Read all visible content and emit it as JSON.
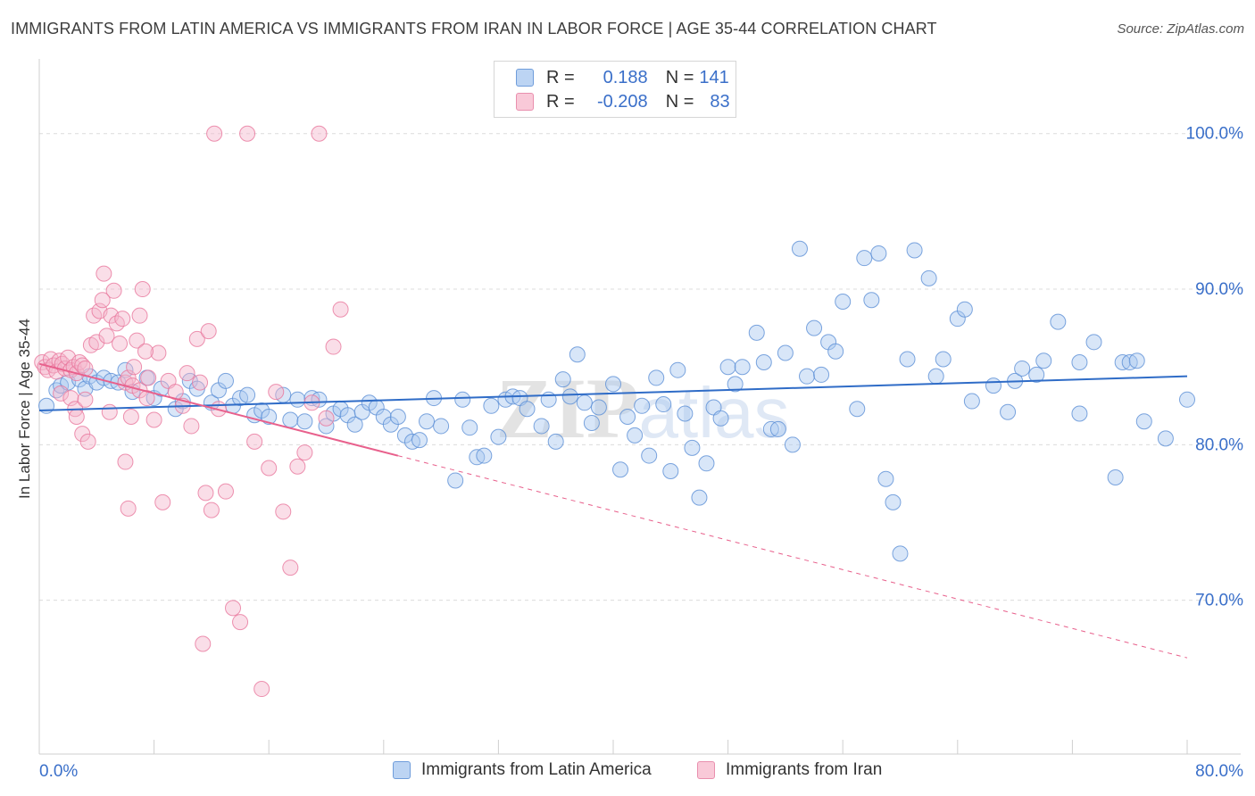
{
  "title": "IMMIGRANTS FROM LATIN AMERICA VS IMMIGRANTS FROM IRAN IN LABOR FORCE | AGE 35-44 CORRELATION CHART",
  "source": "Source: ZipAtlas.com",
  "watermark": "ZIPatlas",
  "legend": {
    "r_label": "R =",
    "n_label": "N =",
    "rows": [
      {
        "r": "0.188",
        "n": "141",
        "color": "#a8c8f0"
      },
      {
        "r": "-0.208",
        "n": "83",
        "color": "#f5b6cb"
      }
    ]
  },
  "chart_data": {
    "type": "scatter",
    "title": "IMMIGRANTS FROM LATIN AMERICA VS IMMIGRANTS FROM IRAN IN LABOR FORCE | AGE 35-44 CORRELATION CHART",
    "xlabel": "",
    "ylabel": "In Labor Force | Age 35-44",
    "xlim": [
      0,
      80
    ],
    "ylim": [
      60,
      104
    ],
    "x_tick_labels": [
      "0.0%",
      "80.0%"
    ],
    "y_ticks": [
      70,
      80,
      90,
      100
    ],
    "y_tick_labels": [
      "70.0%",
      "80.0%",
      "90.0%",
      "100.0%"
    ],
    "grid": true,
    "legend_position": "top-center",
    "series": [
      {
        "name": "Immigrants from Latin America",
        "color": "#5b8fd6",
        "fill": "#a8c8f0",
        "trend": {
          "x": [
            0,
            80
          ],
          "y": [
            82.2,
            84.4
          ],
          "style": "solid",
          "color": "#2f6cc7"
        },
        "points": [
          [
            0.5,
            82.5
          ],
          [
            1.2,
            83.5
          ],
          [
            1.5,
            83.8
          ],
          [
            2.0,
            84.0
          ],
          [
            2.8,
            84.2
          ],
          [
            3.2,
            83.6
          ],
          [
            3.5,
            84.4
          ],
          [
            4.0,
            84.0
          ],
          [
            4.5,
            84.3
          ],
          [
            5.0,
            84.1
          ],
          [
            5.5,
            84.0
          ],
          [
            6.0,
            84.8
          ],
          [
            6.5,
            83.4
          ],
          [
            7.5,
            84.3
          ],
          [
            8.0,
            83.0
          ],
          [
            8.5,
            83.6
          ],
          [
            9.5,
            82.3
          ],
          [
            10.0,
            82.8
          ],
          [
            10.5,
            84.1
          ],
          [
            11.0,
            83.6
          ],
          [
            12.0,
            82.7
          ],
          [
            12.5,
            83.5
          ],
          [
            13.0,
            84.1
          ],
          [
            13.5,
            82.5
          ],
          [
            14.0,
            83.0
          ],
          [
            14.5,
            83.2
          ],
          [
            15.0,
            81.9
          ],
          [
            15.5,
            82.2
          ],
          [
            16.0,
            81.8
          ],
          [
            17.0,
            83.2
          ],
          [
            17.5,
            81.6
          ],
          [
            18.0,
            82.9
          ],
          [
            18.5,
            81.5
          ],
          [
            19.0,
            83.0
          ],
          [
            19.5,
            82.9
          ],
          [
            20.0,
            81.2
          ],
          [
            20.5,
            82.0
          ],
          [
            21.0,
            82.3
          ],
          [
            21.5,
            81.9
          ],
          [
            22.0,
            81.3
          ],
          [
            22.5,
            82.1
          ],
          [
            23.0,
            82.7
          ],
          [
            23.5,
            82.4
          ],
          [
            24.0,
            81.8
          ],
          [
            24.5,
            81.3
          ],
          [
            25.0,
            81.8
          ],
          [
            25.5,
            80.6
          ],
          [
            26.0,
            80.2
          ],
          [
            26.5,
            80.3
          ],
          [
            27.0,
            81.5
          ],
          [
            27.5,
            83.0
          ],
          [
            28.0,
            81.2
          ],
          [
            29.0,
            77.7
          ],
          [
            29.5,
            82.9
          ],
          [
            30.0,
            81.1
          ],
          [
            30.5,
            79.2
          ],
          [
            31.0,
            79.3
          ],
          [
            31.5,
            82.5
          ],
          [
            32.0,
            80.5
          ],
          [
            32.5,
            82.9
          ],
          [
            33.0,
            83.1
          ],
          [
            33.5,
            83.0
          ],
          [
            34.0,
            82.3
          ],
          [
            35.0,
            81.2
          ],
          [
            35.5,
            82.9
          ],
          [
            36.0,
            80.2
          ],
          [
            36.5,
            84.2
          ],
          [
            37.0,
            83.1
          ],
          [
            37.5,
            85.8
          ],
          [
            38.0,
            82.7
          ],
          [
            38.5,
            81.4
          ],
          [
            39.0,
            82.4
          ],
          [
            40.0,
            83.9
          ],
          [
            40.5,
            78.4
          ],
          [
            41.0,
            81.8
          ],
          [
            41.5,
            80.6
          ],
          [
            42.0,
            82.5
          ],
          [
            42.5,
            79.3
          ],
          [
            43.0,
            84.3
          ],
          [
            43.5,
            82.6
          ],
          [
            44.0,
            78.3
          ],
          [
            44.5,
            84.8
          ],
          [
            45.0,
            82.0
          ],
          [
            45.5,
            79.8
          ],
          [
            46.0,
            76.6
          ],
          [
            46.5,
            78.8
          ],
          [
            47.0,
            82.4
          ],
          [
            47.5,
            81.7
          ],
          [
            48.0,
            85.0
          ],
          [
            48.5,
            83.9
          ],
          [
            49.0,
            85.0
          ],
          [
            50.0,
            87.2
          ],
          [
            50.5,
            85.3
          ],
          [
            51.0,
            81.0
          ],
          [
            51.5,
            81.0
          ],
          [
            52.0,
            85.9
          ],
          [
            52.5,
            80.0
          ],
          [
            53.0,
            92.6
          ],
          [
            53.5,
            84.4
          ],
          [
            54.0,
            87.5
          ],
          [
            54.5,
            84.5
          ],
          [
            55.0,
            86.6
          ],
          [
            55.5,
            86.0
          ],
          [
            56.0,
            89.2
          ],
          [
            57.0,
            82.3
          ],
          [
            57.5,
            92.0
          ],
          [
            58.0,
            89.3
          ],
          [
            58.5,
            92.3
          ],
          [
            59.0,
            77.8
          ],
          [
            59.5,
            76.3
          ],
          [
            60.0,
            73.0
          ],
          [
            60.5,
            85.5
          ],
          [
            61.0,
            92.5
          ],
          [
            62.0,
            90.7
          ],
          [
            62.5,
            84.4
          ],
          [
            63.0,
            85.5
          ],
          [
            64.0,
            88.1
          ],
          [
            64.5,
            88.7
          ],
          [
            65.0,
            82.8
          ],
          [
            66.5,
            83.8
          ],
          [
            67.5,
            82.1
          ],
          [
            68.0,
            84.1
          ],
          [
            68.5,
            84.9
          ],
          [
            69.5,
            84.5
          ],
          [
            70.0,
            85.4
          ],
          [
            71.0,
            87.9
          ],
          [
            72.5,
            82.0
          ],
          [
            72.5,
            85.3
          ],
          [
            73.5,
            86.6
          ],
          [
            75.0,
            77.9
          ],
          [
            75.5,
            85.3
          ],
          [
            76.0,
            85.3
          ],
          [
            76.5,
            85.4
          ],
          [
            77.0,
            81.5
          ],
          [
            78.5,
            80.4
          ],
          [
            80.0,
            82.9
          ]
        ]
      },
      {
        "name": "Immigrants from Iran",
        "color": "#e8779c",
        "fill": "#f5b6cb",
        "trend": {
          "x": [
            0,
            80
          ],
          "y": [
            85.2,
            66.3
          ],
          "style": "solid-then-dashed",
          "solid_until_x": 25,
          "color": "#e8608c"
        },
        "points": [
          [
            0.2,
            85.3
          ],
          [
            0.4,
            85.0
          ],
          [
            0.6,
            84.8
          ],
          [
            0.8,
            85.5
          ],
          [
            1.0,
            85.1
          ],
          [
            1.2,
            84.7
          ],
          [
            1.4,
            85.4
          ],
          [
            1.6,
            85.2
          ],
          [
            1.8,
            84.9
          ],
          [
            2.0,
            85.6
          ],
          [
            2.2,
            84.8
          ],
          [
            2.4,
            85.0
          ],
          [
            2.6,
            84.6
          ],
          [
            2.8,
            85.3
          ],
          [
            3.0,
            85.1
          ],
          [
            3.2,
            84.9
          ],
          [
            1.5,
            83.3
          ],
          [
            2.2,
            83.0
          ],
          [
            2.5,
            82.3
          ],
          [
            2.6,
            81.8
          ],
          [
            3.0,
            80.7
          ],
          [
            3.2,
            82.9
          ],
          [
            3.4,
            80.2
          ],
          [
            3.6,
            86.4
          ],
          [
            3.8,
            88.3
          ],
          [
            4.0,
            86.6
          ],
          [
            4.2,
            88.6
          ],
          [
            4.4,
            89.3
          ],
          [
            4.5,
            91.0
          ],
          [
            4.7,
            87.0
          ],
          [
            4.9,
            82.1
          ],
          [
            5.0,
            88.3
          ],
          [
            5.2,
            89.9
          ],
          [
            5.4,
            87.8
          ],
          [
            5.6,
            86.5
          ],
          [
            5.8,
            88.1
          ],
          [
            6.0,
            84.0
          ],
          [
            6.2,
            84.3
          ],
          [
            6.5,
            83.8
          ],
          [
            7.0,
            83.5
          ],
          [
            7.5,
            83.0
          ],
          [
            8.0,
            81.6
          ],
          [
            8.3,
            85.9
          ],
          [
            8.6,
            76.3
          ],
          [
            9.0,
            84.1
          ],
          [
            9.5,
            83.4
          ],
          [
            10.0,
            82.5
          ],
          [
            10.3,
            84.6
          ],
          [
            10.6,
            81.2
          ],
          [
            11.0,
            86.8
          ],
          [
            11.2,
            84.0
          ],
          [
            11.4,
            67.2
          ],
          [
            11.6,
            76.9
          ],
          [
            11.8,
            87.3
          ],
          [
            12.0,
            75.8
          ],
          [
            12.2,
            100.0
          ],
          [
            12.5,
            82.3
          ],
          [
            13.0,
            77.0
          ],
          [
            13.5,
            69.5
          ],
          [
            14.0,
            68.6
          ],
          [
            14.5,
            100.0
          ],
          [
            15.0,
            80.2
          ],
          [
            15.5,
            64.3
          ],
          [
            16.0,
            78.5
          ],
          [
            16.5,
            83.4
          ],
          [
            17.0,
            75.7
          ],
          [
            17.5,
            72.1
          ],
          [
            18.0,
            78.6
          ],
          [
            18.5,
            79.5
          ],
          [
            19.0,
            82.7
          ],
          [
            19.5,
            100.0
          ],
          [
            20.0,
            81.7
          ],
          [
            20.5,
            86.3
          ],
          [
            21.0,
            88.7
          ],
          [
            6.0,
            78.9
          ],
          [
            6.2,
            75.9
          ],
          [
            6.4,
            81.8
          ],
          [
            6.6,
            85.0
          ],
          [
            6.8,
            86.7
          ],
          [
            7.0,
            88.3
          ],
          [
            7.2,
            90.0
          ],
          [
            7.4,
            86.0
          ],
          [
            7.6,
            84.3
          ]
        ]
      }
    ]
  }
}
